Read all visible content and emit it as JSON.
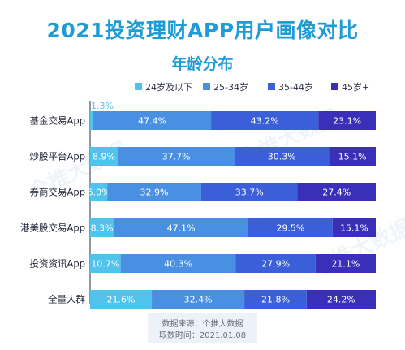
{
  "title": "2021投资理财APP用户画像对比",
  "chart_data": {
    "type": "bar",
    "orientation": "horizontal",
    "stacked": true,
    "normalized": true,
    "title": "年龄分布",
    "categories": [
      "基金交易App",
      "炒股平台App",
      "券商交易App",
      "港美股交易App",
      "投资资讯App",
      "全量人群"
    ],
    "series": [
      {
        "name": "24岁及以下",
        "color": "#4fc3ec",
        "values": [
          1.3,
          8.9,
          6.0,
          8.3,
          10.7,
          21.6
        ],
        "labels": [
          "1.3%",
          "8.9%",
          "6.0%",
          "8.3%",
          "10.7%",
          "21.6%"
        ]
      },
      {
        "name": "25-34岁",
        "color": "#4a90e2",
        "values": [
          47.4,
          37.7,
          32.9,
          47.1,
          40.3,
          32.4
        ],
        "labels": [
          "47.4%",
          "37.7%",
          "32.9%",
          "47.1%",
          "40.3%",
          "32.4%"
        ]
      },
      {
        "name": "35-44岁",
        "color": "#3b5fd9",
        "values": [
          43.2,
          30.3,
          33.7,
          29.5,
          27.9,
          21.8
        ],
        "labels": [
          "43.2%",
          "30.3%",
          "33.7%",
          "29.5%",
          "27.9%",
          "21.8%"
        ]
      },
      {
        "name": "45岁+",
        "color": "#3a2fb8",
        "values": [
          23.1,
          15.1,
          27.4,
          15.1,
          21.1,
          24.2
        ],
        "labels": [
          "23.1%",
          "15.1%",
          "27.4%",
          "15.1%",
          "21.1%",
          "24.2%"
        ]
      }
    ],
    "legend_position": "top",
    "grid": false
  },
  "watermark": "个推大数据",
  "footer": {
    "source": "数据来源：个推大数据",
    "time": "取数时间：2021.01.08"
  }
}
